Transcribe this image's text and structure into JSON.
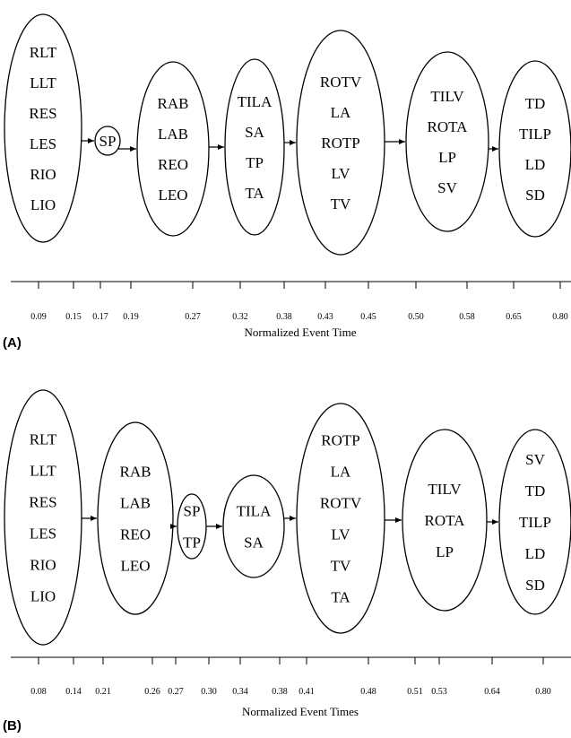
{
  "panels": [
    {
      "id": "A",
      "label": "(A)",
      "axis_title": "Normalized Event Time",
      "nodes": [
        {
          "items": [
            "RLT",
            "LLT",
            "RES",
            "LES",
            "RIO",
            "LIO"
          ]
        },
        {
          "items": [
            "SP"
          ]
        },
        {
          "items": [
            "RAB",
            "LAB",
            "REO",
            "LEO"
          ]
        },
        {
          "items": [
            "TILA",
            "SA",
            "TP",
            "TA"
          ]
        },
        {
          "items": [
            "ROTV",
            "LA",
            "ROTP",
            "LV",
            "TV"
          ]
        },
        {
          "items": [
            "TILV",
            "ROTA",
            "LP",
            "SV"
          ]
        },
        {
          "items": [
            "TD",
            "TILP",
            "LD",
            "SD"
          ]
        }
      ],
      "ticks": [
        "0.09",
        "0.15",
        "0.17",
        "0.19",
        "0.27",
        "0.32",
        "0.38",
        "0.43",
        "0.45",
        "0.50",
        "0.58",
        "0.65",
        "0.80"
      ]
    },
    {
      "id": "B",
      "label": "(B)",
      "axis_title": "Normalized Event Times",
      "nodes": [
        {
          "items": [
            "RLT",
            "LLT",
            "RES",
            "LES",
            "RIO",
            "LIO"
          ]
        },
        {
          "items": [
            "RAB",
            "LAB",
            "REO",
            "LEO"
          ]
        },
        {
          "items": [
            "SP",
            "TP"
          ]
        },
        {
          "items": [
            "TILA",
            "SA"
          ]
        },
        {
          "items": [
            "ROTP",
            "LA",
            "ROTV",
            "LV",
            "TV",
            "TA"
          ]
        },
        {
          "items": [
            "TILV",
            "ROTA",
            "LP"
          ]
        },
        {
          "items": [
            "SV",
            "TD",
            "TILP",
            "LD",
            "SD"
          ]
        }
      ],
      "ticks": [
        "0.08",
        "0.14",
        "0.21",
        "0.26",
        "0.27",
        "0.30",
        "0.34",
        "0.38",
        "0.41",
        "0.48",
        "0.51",
        "0.53",
        "0.64",
        "0.80"
      ]
    }
  ]
}
